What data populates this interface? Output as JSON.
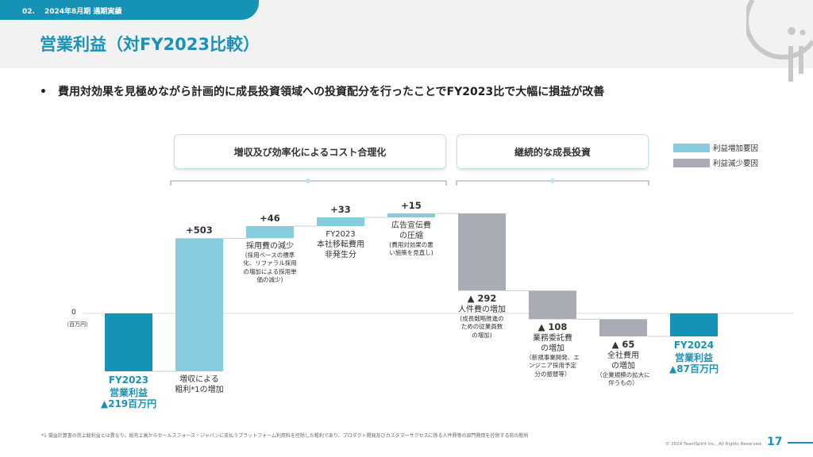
{
  "header": {
    "section": "02.",
    "period": "2024年8月期 通期実績",
    "title": "営業利益（対FY2023比較）"
  },
  "bullet": {
    "mark": "•",
    "text": "費用対効果を見極めながら計画的に成長投資領域への投資配分を行ったことでFY2023比で大幅に損益が改善"
  },
  "groups": [
    {
      "label": "増収及び効率化によるコスト合理化"
    },
    {
      "label": "継続的な成長投資"
    }
  ],
  "legend": [
    {
      "label": "利益増加要因",
      "color": "#86cde0"
    },
    {
      "label": "利益減少要因",
      "color": "#a9abb5"
    }
  ],
  "chart_data": {
    "type": "waterfall",
    "zero_label": "0",
    "unit": "（百万円）",
    "colors": {
      "total": "#1592b6",
      "increase": "#86cde0",
      "decrease": "#a9abb5"
    },
    "categories": [
      {
        "kind": "total",
        "value": -219,
        "value_label": "",
        "title": "FY2023\n営業利益",
        "note": "▲219百万円"
      },
      {
        "kind": "increase",
        "value": 503,
        "value_label": "+503",
        "title": "増収による\n粗利*1の増加",
        "note": ""
      },
      {
        "kind": "increase",
        "value": 46,
        "value_label": "+46",
        "title": "採用費の減少",
        "note": "(採用ベースの標準\n化、リファラル採用\nの増加による採用単\n価の減少)"
      },
      {
        "kind": "increase",
        "value": 33,
        "value_label": "+33",
        "title": "FY2023\n本社移転費用\n非発生分",
        "note": ""
      },
      {
        "kind": "increase",
        "value": 15,
        "value_label": "+15",
        "title": "広告宣伝費\nの圧縮",
        "note": "(費用対効果の悪\nい施策を見直し)"
      },
      {
        "kind": "decrease",
        "value": -292,
        "value_label": "▲ 292",
        "title": "人件費の増加",
        "note": "(成長戦略推進の\nための従業員数\nの増加)"
      },
      {
        "kind": "decrease",
        "value": -108,
        "value_label": "▲ 108",
        "title": "業務委託費\nの増加",
        "note": "（新規事業開発、エ\nンジニア採用予定\n分の振替等）"
      },
      {
        "kind": "decrease",
        "value": -65,
        "value_label": "▲ 65",
        "title": "全社費用\nの増加",
        "note": "（企業規模の拡大に\n伴うもの）"
      },
      {
        "kind": "total",
        "value": -87,
        "value_label": "",
        "title": "FY2024\n営業利益",
        "note": "▲87百万円"
      }
    ]
  },
  "footer": {
    "footnote": "*1 損益計算書の売上総利益とは異なり、総売上高からセールスフォース・ジャパンに支払うプラットフォーム利用料を控除した粗利であり、プロダクト開発及びカスタマーサクセスに係る人件費等の部門費用を控除する前の粗利",
    "copyright": "© 2024 TeamSpirit Inc., All Rights Reserved.",
    "page": "17"
  }
}
